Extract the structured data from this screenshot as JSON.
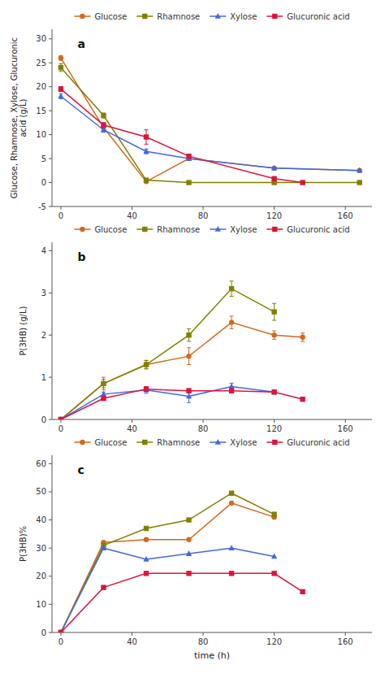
{
  "chart_data": [
    {
      "type": "line",
      "title": "a",
      "ylabel": "Glucose, Rhamnose, Xylose, Glucuronic\nacid (g/L)",
      "xlim": [
        -5,
        175
      ],
      "xticks": [
        0,
        40,
        80,
        120,
        160
      ],
      "ylim": [
        -5,
        32
      ],
      "yticks": [
        -5,
        0,
        5,
        10,
        15,
        20,
        25,
        30
      ],
      "series": [
        {
          "name": "Glucose",
          "color": "#D2691E",
          "marker": "circle",
          "x": [
            0,
            24,
            48,
            72,
            120,
            168
          ],
          "values": [
            26,
            11.5,
            0.2,
            5.0,
            3.0,
            2.5
          ],
          "errors": [
            0.5,
            0.8,
            0.2,
            0.3,
            0.2,
            0.2
          ]
        },
        {
          "name": "Rhamnose",
          "color": "#808000",
          "marker": "square",
          "x": [
            0,
            24,
            48,
            72,
            120,
            168
          ],
          "values": [
            24,
            14,
            0.5,
            0.0,
            0.0,
            0.0
          ],
          "errors": [
            0.8,
            0.5,
            0.2,
            0.1,
            0.1,
            0.1
          ]
        },
        {
          "name": "Xylose",
          "color": "#4169E1",
          "marker": "triangle",
          "x": [
            0,
            24,
            48,
            72,
            120,
            168
          ],
          "values": [
            18,
            11,
            6.5,
            5.0,
            3.0,
            2.5
          ],
          "errors": [
            0.5,
            0.5,
            0.5,
            0.3,
            0.2,
            0.2
          ]
        },
        {
          "name": "Glucuronic acid",
          "color": "#DC143C",
          "marker": "square",
          "x": [
            0,
            24,
            48,
            72,
            120,
            136
          ],
          "values": [
            19.5,
            12,
            9.5,
            5.5,
            0.8,
            0.0
          ],
          "errors": [
            0.5,
            0.5,
            1.5,
            0.3,
            0.2,
            0.1
          ]
        }
      ]
    },
    {
      "type": "line",
      "title": "b",
      "ylabel": "P(3HB) (g/L)",
      "xlim": [
        -5,
        175
      ],
      "xticks": [
        0,
        40,
        80,
        120,
        160
      ],
      "ylim": [
        0,
        4.2
      ],
      "yticks": [
        0,
        1,
        2,
        3,
        4
      ],
      "series": [
        {
          "name": "Glucose",
          "color": "#D2691E",
          "marker": "circle",
          "x": [
            0,
            24,
            48,
            72,
            96,
            120,
            136
          ],
          "values": [
            0.0,
            0.85,
            1.3,
            1.5,
            2.3,
            2.0,
            1.95
          ],
          "errors": [
            0.0,
            0.15,
            0.1,
            0.2,
            0.15,
            0.1,
            0.1
          ]
        },
        {
          "name": "Rhamnose",
          "color": "#808000",
          "marker": "square",
          "x": [
            0,
            24,
            48,
            72,
            96,
            120
          ],
          "values": [
            0.0,
            0.85,
            1.3,
            2.0,
            3.1,
            2.55
          ],
          "errors": [
            0.0,
            0.1,
            0.1,
            0.15,
            0.18,
            0.2
          ]
        },
        {
          "name": "Xylose",
          "color": "#4169E1",
          "marker": "triangle",
          "x": [
            0,
            24,
            48,
            72,
            96,
            120
          ],
          "values": [
            0.0,
            0.6,
            0.7,
            0.55,
            0.78,
            0.65
          ],
          "errors": [
            0.0,
            0.05,
            0.08,
            0.15,
            0.08,
            0.05
          ]
        },
        {
          "name": "Glucuronic acid",
          "color": "#DC143C",
          "marker": "square",
          "x": [
            0,
            24,
            48,
            72,
            96,
            120,
            136
          ],
          "values": [
            0.0,
            0.5,
            0.72,
            0.68,
            0.68,
            0.65,
            0.48
          ],
          "errors": [
            0.0,
            0.04,
            0.05,
            0.05,
            0.05,
            0.04,
            0.04
          ]
        }
      ]
    },
    {
      "type": "line",
      "title": "c",
      "ylabel": "P(3HB)%",
      "xlabel": "time (h)",
      "xlim": [
        -5,
        175
      ],
      "xticks": [
        0,
        40,
        80,
        120,
        160
      ],
      "ylim": [
        0,
        63
      ],
      "yticks": [
        0,
        10,
        20,
        30,
        40,
        50,
        60
      ],
      "series": [
        {
          "name": "Glucose",
          "color": "#D2691E",
          "marker": "circle",
          "x": [
            0,
            24,
            48,
            72,
            96,
            120
          ],
          "values": [
            0,
            32,
            33,
            33,
            46,
            41
          ]
        },
        {
          "name": "Rhamnose",
          "color": "#808000",
          "marker": "square",
          "x": [
            0,
            24,
            48,
            72,
            96,
            120
          ],
          "values": [
            0,
            31,
            37,
            40,
            49.5,
            42
          ]
        },
        {
          "name": "Xylose",
          "color": "#4169E1",
          "marker": "triangle",
          "x": [
            0,
            24,
            48,
            72,
            96,
            120
          ],
          "values": [
            0,
            30,
            26,
            28,
            30,
            27
          ]
        },
        {
          "name": "Glucuronic acid",
          "color": "#DC143C",
          "marker": "square",
          "x": [
            0,
            24,
            48,
            72,
            96,
            120,
            136
          ],
          "values": [
            0,
            16,
            21,
            21,
            21,
            21,
            14.5
          ]
        }
      ]
    }
  ]
}
